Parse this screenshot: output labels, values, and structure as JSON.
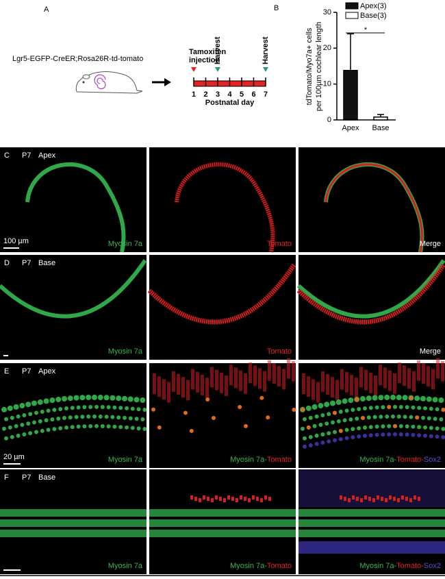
{
  "panel_a": {
    "label": "A",
    "strain": "Lgr5-EGFP-CreER;Rosa26R-td-tomato",
    "injection": [
      "Tamoxifen",
      "injection"
    ],
    "injection_day": 1,
    "harvest_label": "Harvest",
    "harvest_days": [
      3,
      7
    ],
    "days": [
      1,
      2,
      3,
      4,
      5,
      6,
      7
    ],
    "axis_label": "Postnatal day"
  },
  "chart_data": {
    "type": "bar",
    "panel_label": "B",
    "y_label": [
      "tdTomato/Myo7a+ cells",
      "per 100µm cochlear length"
    ],
    "categories": [
      "Apex",
      "Base"
    ],
    "values": [
      13.8,
      0.8
    ],
    "errors": [
      10.2,
      0.7
    ],
    "colors": [
      "#111111",
      "#ffffff"
    ],
    "legend": [
      "Apex(3)",
      "Base(3)"
    ],
    "annotation": "*",
    "ylim": [
      0,
      30
    ],
    "yticks": [
      0,
      10,
      20,
      30
    ]
  },
  "panels": [
    {
      "label": "C",
      "stage": "P7",
      "region": "Apex",
      "scale": "100 µm",
      "channels": [
        {
          "parts": [
            "Myosin 7a"
          ],
          "colors": [
            "#35b552"
          ]
        },
        {
          "parts": [
            "Tomato"
          ],
          "colors": [
            "#e52222"
          ]
        },
        {
          "parts": [
            "Merge"
          ],
          "colors": [
            "#ffffff"
          ]
        }
      ]
    },
    {
      "label": "D",
      "stage": "P7",
      "region": "Base",
      "channels": [
        {
          "parts": [
            "Myosin 7a"
          ],
          "colors": [
            "#35b552"
          ]
        },
        {
          "parts": [
            "Tomato"
          ],
          "colors": [
            "#e52222"
          ]
        },
        {
          "parts": [
            "Merge"
          ],
          "colors": [
            "#ffffff"
          ]
        }
      ]
    },
    {
      "label": "E",
      "stage": "P7",
      "region": "Apex",
      "scale": "20 µm",
      "channels": [
        {
          "parts": [
            "Myosin 7a"
          ],
          "colors": [
            "#35b552"
          ]
        },
        {
          "parts": [
            "Myosin 7a",
            "-",
            "Tomato"
          ],
          "colors": [
            "#35b552",
            "#35b552",
            "#e52222"
          ]
        },
        {
          "parts": [
            "Myosin 7a",
            "-",
            "Tomato",
            "-",
            "Sox2"
          ],
          "colors": [
            "#35b552",
            "#35b552",
            "#e52222",
            "#e52222",
            "#5a4fd8"
          ]
        }
      ]
    },
    {
      "label": "F",
      "stage": "P7",
      "region": "Base",
      "channels": [
        {
          "parts": [
            "Myosin 7a"
          ],
          "colors": [
            "#35b552"
          ]
        },
        {
          "parts": [
            "Myosin 7a",
            "-",
            "Tomato"
          ],
          "colors": [
            "#35b552",
            "#35b552",
            "#e52222"
          ]
        },
        {
          "parts": [
            "Myosin 7a",
            "-",
            "Tomato",
            "-",
            "Sox2"
          ],
          "colors": [
            "#35b552",
            "#35b552",
            "#e52222",
            "#e52222",
            "#5a4fd8"
          ]
        }
      ]
    }
  ]
}
